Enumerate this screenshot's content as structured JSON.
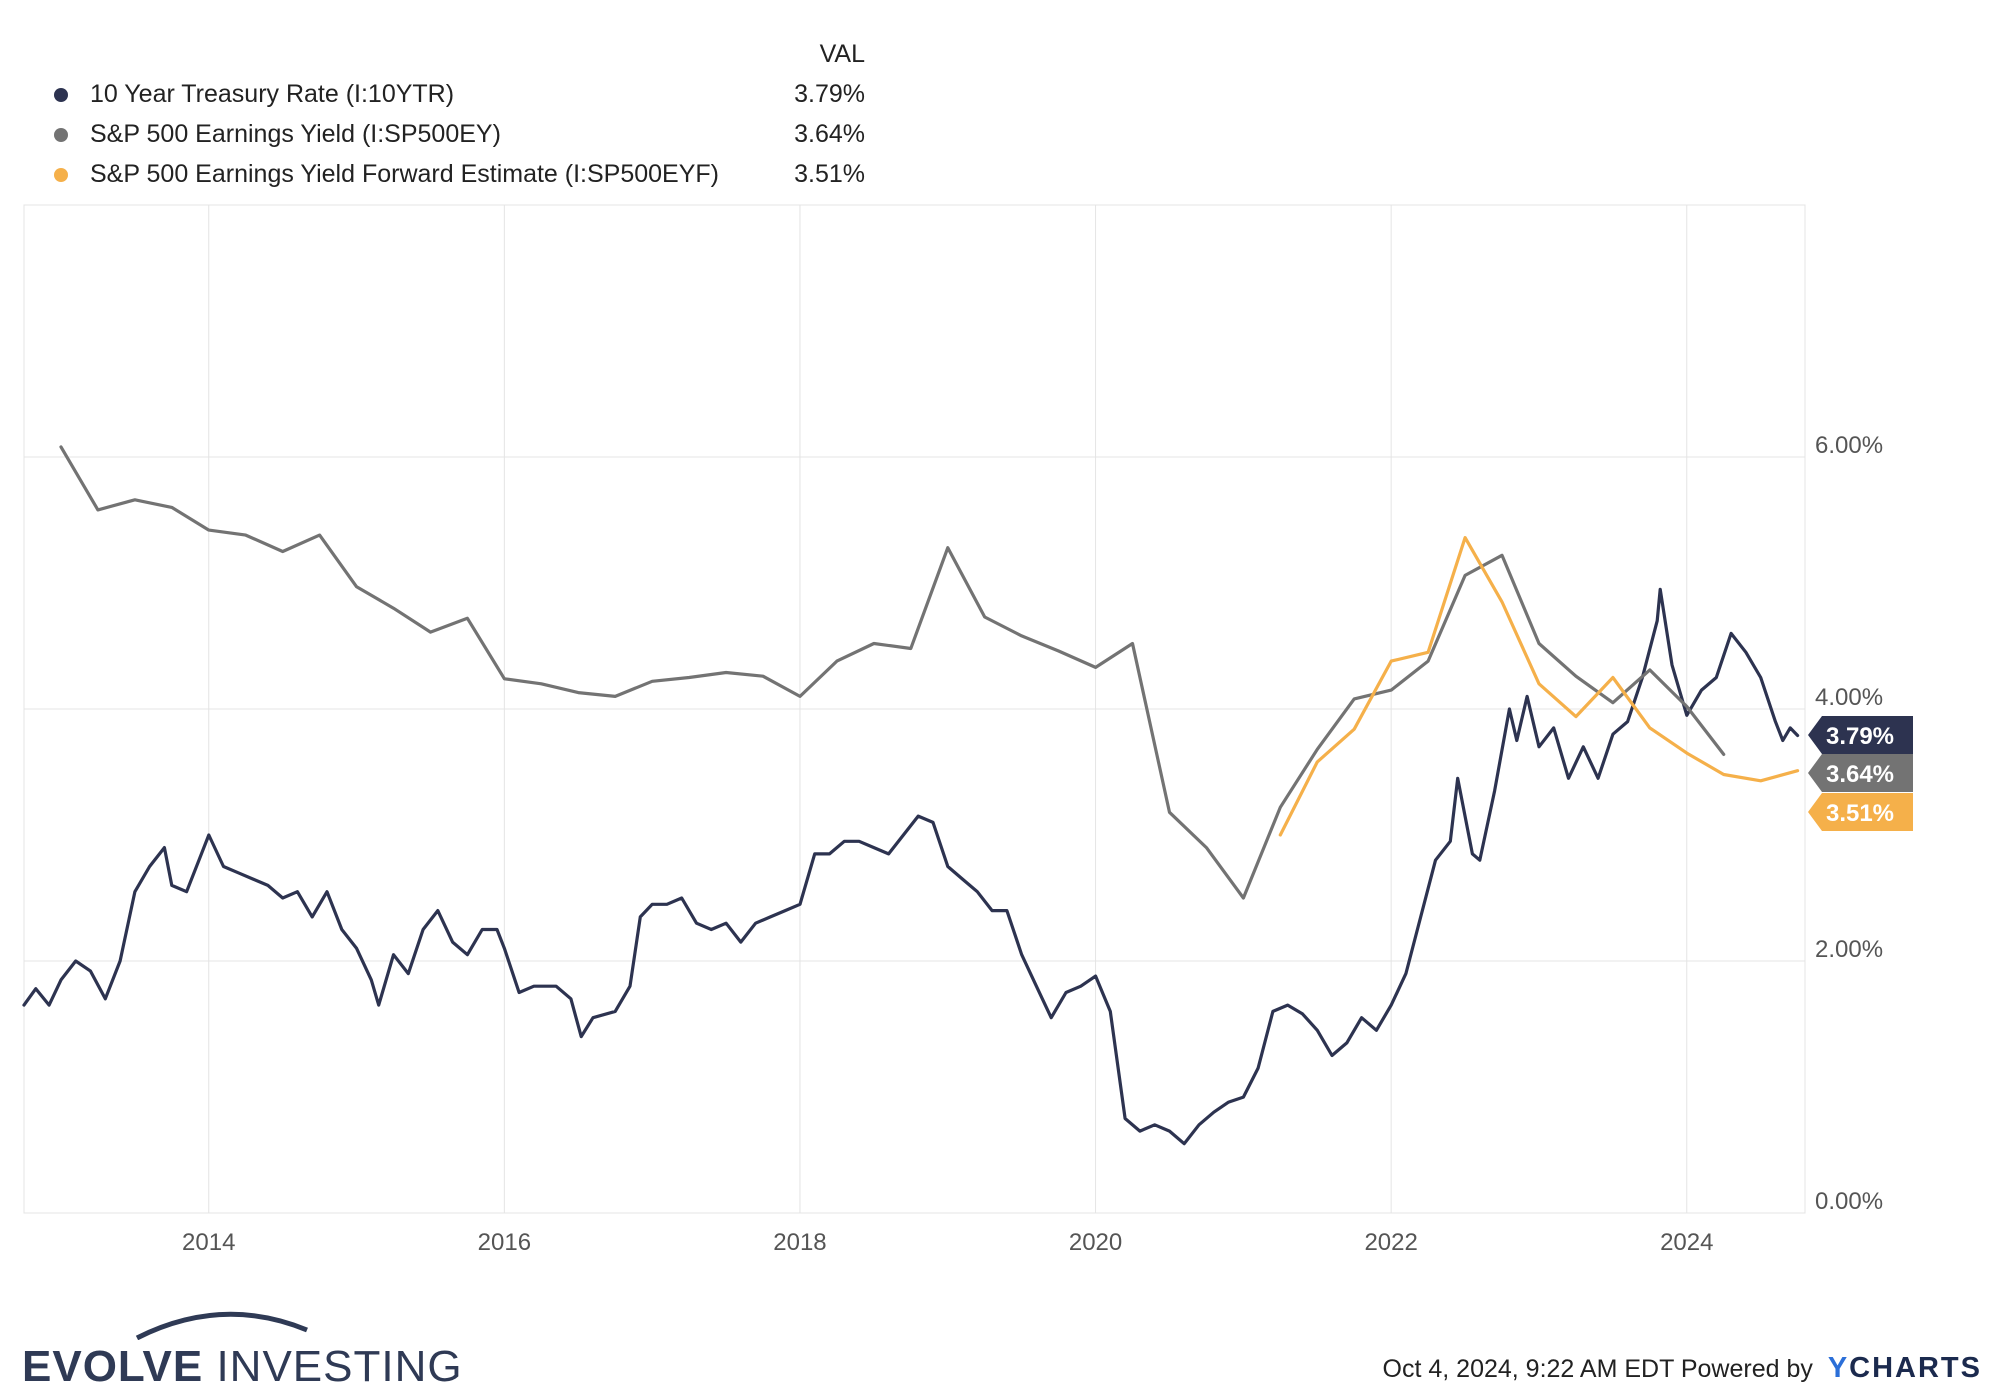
{
  "legend": {
    "header": "VAL",
    "items": [
      {
        "name": "10 Year Treasury Rate (I:10YTR)",
        "value": "3.79%",
        "color": "#2d3350"
      },
      {
        "name": "S&P 500 Earnings Yield (I:SP500EY)",
        "value": "3.64%",
        "color": "#737373"
      },
      {
        "name": "S&P 500 Earnings Yield Forward Estimate (I:SP500EYF)",
        "value": "3.51%",
        "color": "#f5b04a"
      }
    ]
  },
  "footer": {
    "brand_bold": "EVOLVE",
    "brand_light": " INVESTING",
    "timestamp": "Oct 4, 2024, 9:22 AM EDT Powered by",
    "ycharts_y": "Y",
    "ycharts_rest": "CHARTS"
  },
  "chart_data": {
    "type": "line",
    "title": "",
    "xlabel": "",
    "ylabel": "",
    "x_ticks": [
      "2014",
      "2016",
      "2018",
      "2020",
      "2022",
      "2024"
    ],
    "y_ticks": [
      "0.00%",
      "2.00%",
      "4.00%",
      "6.00%"
    ],
    "ylim": [
      0,
      8.0
    ],
    "xlim": [
      2012.75,
      2024.8
    ],
    "grid": true,
    "end_labels": [
      "3.79%",
      "3.64%",
      "3.51%"
    ],
    "series": [
      {
        "name": "10 Year Treasury Rate (I:10YTR)",
        "color": "#2d3350",
        "points": [
          [
            2012.75,
            1.65
          ],
          [
            2012.83,
            1.78
          ],
          [
            2012.92,
            1.65
          ],
          [
            2013.0,
            1.85
          ],
          [
            2013.1,
            2.0
          ],
          [
            2013.2,
            1.92
          ],
          [
            2013.3,
            1.7
          ],
          [
            2013.4,
            2.0
          ],
          [
            2013.5,
            2.55
          ],
          [
            2013.6,
            2.75
          ],
          [
            2013.7,
            2.9
          ],
          [
            2013.75,
            2.6
          ],
          [
            2013.85,
            2.55
          ],
          [
            2013.95,
            2.85
          ],
          [
            2014.0,
            3.0
          ],
          [
            2014.1,
            2.75
          ],
          [
            2014.2,
            2.7
          ],
          [
            2014.3,
            2.65
          ],
          [
            2014.4,
            2.6
          ],
          [
            2014.5,
            2.5
          ],
          [
            2014.6,
            2.55
          ],
          [
            2014.7,
            2.35
          ],
          [
            2014.8,
            2.55
          ],
          [
            2014.9,
            2.25
          ],
          [
            2015.0,
            2.1
          ],
          [
            2015.1,
            1.85
          ],
          [
            2015.15,
            1.65
          ],
          [
            2015.25,
            2.05
          ],
          [
            2015.35,
            1.9
          ],
          [
            2015.45,
            2.25
          ],
          [
            2015.55,
            2.4
          ],
          [
            2015.65,
            2.15
          ],
          [
            2015.75,
            2.05
          ],
          [
            2015.85,
            2.25
          ],
          [
            2015.95,
            2.25
          ],
          [
            2016.0,
            2.1
          ],
          [
            2016.1,
            1.75
          ],
          [
            2016.2,
            1.8
          ],
          [
            2016.35,
            1.8
          ],
          [
            2016.45,
            1.7
          ],
          [
            2016.52,
            1.4
          ],
          [
            2016.6,
            1.55
          ],
          [
            2016.75,
            1.6
          ],
          [
            2016.85,
            1.8
          ],
          [
            2016.92,
            2.35
          ],
          [
            2017.0,
            2.45
          ],
          [
            2017.1,
            2.45
          ],
          [
            2017.2,
            2.5
          ],
          [
            2017.3,
            2.3
          ],
          [
            2017.4,
            2.25
          ],
          [
            2017.5,
            2.3
          ],
          [
            2017.6,
            2.15
          ],
          [
            2017.7,
            2.3
          ],
          [
            2017.8,
            2.35
          ],
          [
            2017.9,
            2.4
          ],
          [
            2018.0,
            2.45
          ],
          [
            2018.1,
            2.85
          ],
          [
            2018.2,
            2.85
          ],
          [
            2018.3,
            2.95
          ],
          [
            2018.4,
            2.95
          ],
          [
            2018.5,
            2.9
          ],
          [
            2018.6,
            2.85
          ],
          [
            2018.7,
            3.0
          ],
          [
            2018.8,
            3.15
          ],
          [
            2018.9,
            3.1
          ],
          [
            2019.0,
            2.75
          ],
          [
            2019.1,
            2.65
          ],
          [
            2019.2,
            2.55
          ],
          [
            2019.3,
            2.4
          ],
          [
            2019.4,
            2.4
          ],
          [
            2019.5,
            2.05
          ],
          [
            2019.6,
            1.8
          ],
          [
            2019.7,
            1.55
          ],
          [
            2019.8,
            1.75
          ],
          [
            2019.9,
            1.8
          ],
          [
            2020.0,
            1.88
          ],
          [
            2020.1,
            1.6
          ],
          [
            2020.2,
            0.75
          ],
          [
            2020.3,
            0.65
          ],
          [
            2020.4,
            0.7
          ],
          [
            2020.5,
            0.65
          ],
          [
            2020.6,
            0.55
          ],
          [
            2020.7,
            0.7
          ],
          [
            2020.8,
            0.8
          ],
          [
            2020.9,
            0.88
          ],
          [
            2021.0,
            0.92
          ],
          [
            2021.1,
            1.15
          ],
          [
            2021.2,
            1.6
          ],
          [
            2021.3,
            1.65
          ],
          [
            2021.4,
            1.58
          ],
          [
            2021.5,
            1.45
          ],
          [
            2021.6,
            1.25
          ],
          [
            2021.7,
            1.35
          ],
          [
            2021.8,
            1.55
          ],
          [
            2021.9,
            1.45
          ],
          [
            2022.0,
            1.65
          ],
          [
            2022.1,
            1.9
          ],
          [
            2022.2,
            2.35
          ],
          [
            2022.3,
            2.8
          ],
          [
            2022.4,
            2.95
          ],
          [
            2022.45,
            3.45
          ],
          [
            2022.55,
            2.85
          ],
          [
            2022.6,
            2.8
          ],
          [
            2022.7,
            3.35
          ],
          [
            2022.8,
            4.0
          ],
          [
            2022.85,
            3.75
          ],
          [
            2022.92,
            4.1
          ],
          [
            2023.0,
            3.7
          ],
          [
            2023.1,
            3.85
          ],
          [
            2023.2,
            3.45
          ],
          [
            2023.3,
            3.7
          ],
          [
            2023.4,
            3.45
          ],
          [
            2023.5,
            3.8
          ],
          [
            2023.6,
            3.9
          ],
          [
            2023.7,
            4.25
          ],
          [
            2023.8,
            4.7
          ],
          [
            2023.82,
            4.95
          ],
          [
            2023.9,
            4.35
          ],
          [
            2024.0,
            3.95
          ],
          [
            2024.1,
            4.15
          ],
          [
            2024.2,
            4.25
          ],
          [
            2024.3,
            4.6
          ],
          [
            2024.4,
            4.45
          ],
          [
            2024.5,
            4.25
          ],
          [
            2024.6,
            3.9
          ],
          [
            2024.65,
            3.75
          ],
          [
            2024.7,
            3.85
          ],
          [
            2024.75,
            3.79
          ]
        ]
      },
      {
        "name": "S&P 500 Earnings Yield (I:SP500EY)",
        "color": "#737373",
        "points": [
          [
            2013.0,
            6.08
          ],
          [
            2013.25,
            5.58
          ],
          [
            2013.5,
            5.66
          ],
          [
            2013.75,
            5.6
          ],
          [
            2014.0,
            5.42
          ],
          [
            2014.25,
            5.38
          ],
          [
            2014.5,
            5.25
          ],
          [
            2014.75,
            5.38
          ],
          [
            2015.0,
            4.97
          ],
          [
            2015.25,
            4.8
          ],
          [
            2015.5,
            4.61
          ],
          [
            2015.75,
            4.72
          ],
          [
            2016.0,
            4.24
          ],
          [
            2016.25,
            4.2
          ],
          [
            2016.5,
            4.13
          ],
          [
            2016.75,
            4.1
          ],
          [
            2017.0,
            4.22
          ],
          [
            2017.25,
            4.25
          ],
          [
            2017.5,
            4.29
          ],
          [
            2017.75,
            4.26
          ],
          [
            2018.0,
            4.1
          ],
          [
            2018.25,
            4.38
          ],
          [
            2018.5,
            4.52
          ],
          [
            2018.75,
            4.48
          ],
          [
            2019.0,
            5.28
          ],
          [
            2019.25,
            4.73
          ],
          [
            2019.5,
            4.58
          ],
          [
            2019.75,
            4.46
          ],
          [
            2020.0,
            4.33
          ],
          [
            2020.25,
            4.52
          ],
          [
            2020.5,
            3.18
          ],
          [
            2020.75,
            2.9
          ],
          [
            2021.0,
            2.5
          ],
          [
            2021.25,
            3.22
          ],
          [
            2021.5,
            3.68
          ],
          [
            2021.75,
            4.08
          ],
          [
            2022.0,
            4.15
          ],
          [
            2022.25,
            4.38
          ],
          [
            2022.5,
            5.06
          ],
          [
            2022.75,
            5.22
          ],
          [
            2023.0,
            4.52
          ],
          [
            2023.25,
            4.26
          ],
          [
            2023.5,
            4.05
          ],
          [
            2023.75,
            4.31
          ],
          [
            2024.0,
            4.02
          ],
          [
            2024.25,
            3.64
          ]
        ]
      },
      {
        "name": "S&P 500 Earnings Yield Forward Estimate (I:SP500EYF)",
        "color": "#f5b04a",
        "points": [
          [
            2021.25,
            3.0
          ],
          [
            2021.5,
            3.58
          ],
          [
            2021.75,
            3.84
          ],
          [
            2022.0,
            4.38
          ],
          [
            2022.25,
            4.45
          ],
          [
            2022.5,
            5.36
          ],
          [
            2022.75,
            4.85
          ],
          [
            2023.0,
            4.2
          ],
          [
            2023.25,
            3.94
          ],
          [
            2023.5,
            4.25
          ],
          [
            2023.75,
            3.85
          ],
          [
            2024.0,
            3.65
          ],
          [
            2024.25,
            3.48
          ],
          [
            2024.5,
            3.43
          ],
          [
            2024.75,
            3.51
          ]
        ]
      }
    ]
  }
}
